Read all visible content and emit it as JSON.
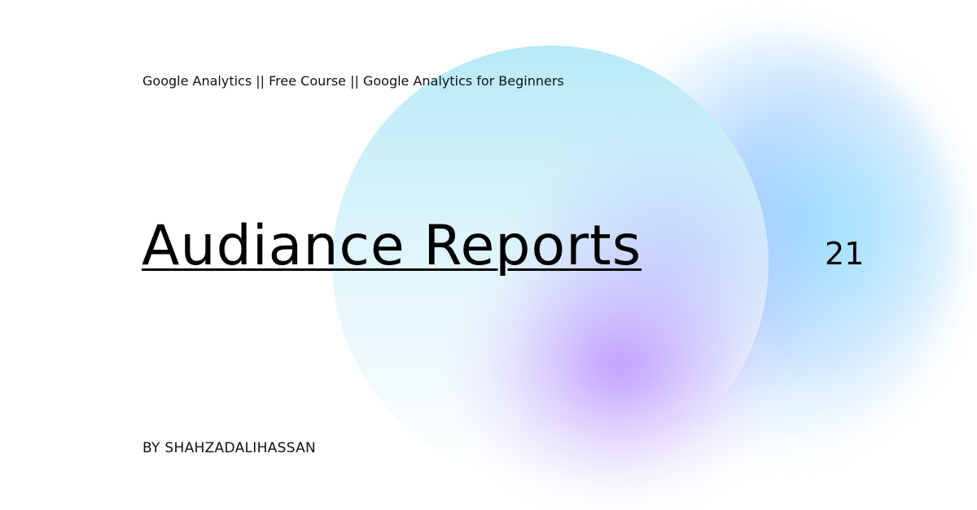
{
  "header": {
    "subtitle": "Google Analytics || Free Course || Google Analytics for Beginners"
  },
  "main": {
    "title": "Audiance Reports",
    "episode_number": "21"
  },
  "footer": {
    "byline": "BY SHAHZADALIHASSAN"
  },
  "colors": {
    "background": "#ffffff",
    "orb_top": "#b7e9f7",
    "glow_blue": "#78b9ff",
    "glow_purple": "#be96ff",
    "text": "#000000"
  }
}
